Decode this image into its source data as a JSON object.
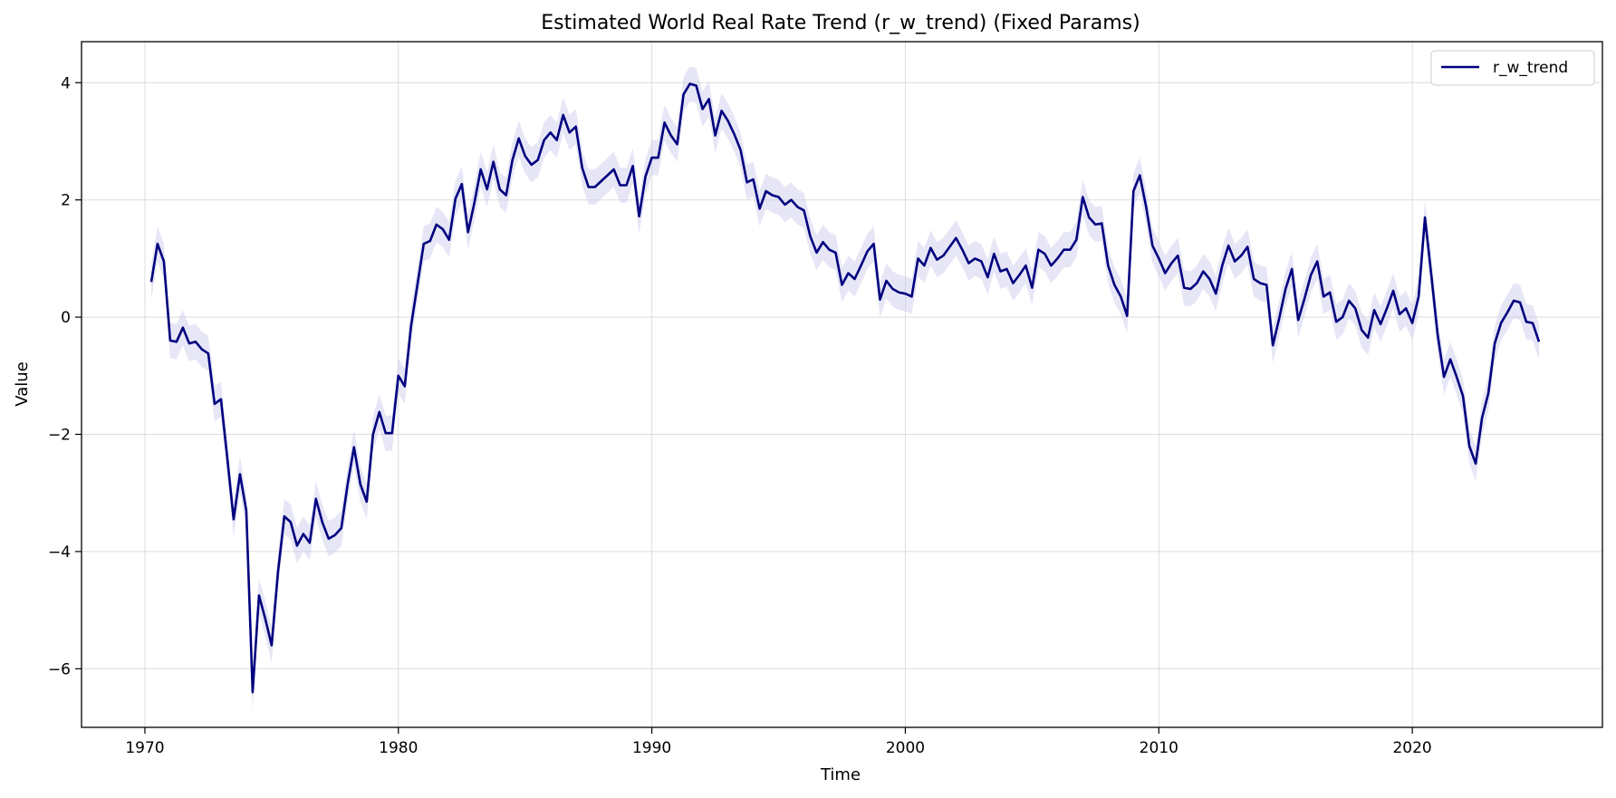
{
  "chart_data": {
    "type": "line",
    "title": "Estimated World Real Rate Trend (r_w_trend) (Fixed Params)",
    "xlabel": "Time",
    "ylabel": "Value",
    "xlim": [
      1967.5,
      2027.5
    ],
    "ylim": [
      -7.0,
      4.7
    ],
    "x_ticks": [
      1970,
      1980,
      1990,
      2000,
      2010,
      2020
    ],
    "x_tick_labels": [
      "1970",
      "1980",
      "1990",
      "2000",
      "2010",
      "2020"
    ],
    "y_ticks": [
      -6,
      -4,
      -2,
      0,
      2,
      4
    ],
    "y_tick_labels": [
      "−6",
      "−4",
      "−2",
      "0",
      "2",
      "4"
    ],
    "grid": true,
    "legend_position": "top-right",
    "colors": {
      "line": "#00007f",
      "band": "#c8c8ea"
    },
    "band_halfwidth": 0.3,
    "series": [
      {
        "name": "r_w_trend",
        "x": [
          1970.25,
          1970.5,
          1970.75,
          1971.0,
          1971.25,
          1971.5,
          1971.75,
          1972.0,
          1972.25,
          1972.5,
          1972.75,
          1973.0,
          1973.25,
          1973.5,
          1973.75,
          1974.0,
          1974.25,
          1974.5,
          1974.75,
          1975.0,
          1975.25,
          1975.5,
          1975.75,
          1976.0,
          1976.25,
          1976.5,
          1976.75,
          1977.0,
          1977.25,
          1977.5,
          1977.75,
          1978.0,
          1978.25,
          1978.5,
          1978.75,
          1979.0,
          1979.25,
          1979.5,
          1979.75,
          1980.0,
          1980.25,
          1980.5,
          1980.75,
          1981.0,
          1981.25,
          1981.5,
          1981.75,
          1982.0,
          1982.25,
          1982.5,
          1982.75,
          1983.0,
          1983.25,
          1983.5,
          1983.75,
          1984.0,
          1984.25,
          1984.5,
          1984.75,
          1985.0,
          1985.25,
          1985.5,
          1985.75,
          1986.0,
          1986.25,
          1986.5,
          1986.75,
          1987.0,
          1987.25,
          1987.5,
          1987.75,
          1988.0,
          1988.25,
          1988.5,
          1988.75,
          1989.0,
          1989.25,
          1989.5,
          1989.75,
          1990.0,
          1990.25,
          1990.5,
          1990.75,
          1991.0,
          1991.25,
          1991.5,
          1991.75,
          1992.0,
          1992.25,
          1992.5,
          1992.75,
          1993.0,
          1993.25,
          1993.5,
          1993.75,
          1994.0,
          1994.25,
          1994.5,
          1994.75,
          1995.0,
          1995.25,
          1995.5,
          1995.75,
          1996.0,
          1996.25,
          1996.5,
          1996.75,
          1997.0,
          1997.25,
          1997.5,
          1997.75,
          1998.0,
          1998.25,
          1998.5,
          1998.75,
          1999.0,
          1999.25,
          1999.5,
          1999.75,
          2000.0,
          2000.25,
          2000.5,
          2000.75,
          2001.0,
          2001.25,
          2001.5,
          2001.75,
          2002.0,
          2002.25,
          2002.5,
          2002.75,
          2003.0,
          2003.25,
          2003.5,
          2003.75,
          2004.0,
          2004.25,
          2004.5,
          2004.75,
          2005.0,
          2005.25,
          2005.5,
          2005.75,
          2006.0,
          2006.25,
          2006.5,
          2006.75,
          2007.0,
          2007.25,
          2007.5,
          2007.75,
          2008.0,
          2008.25,
          2008.5,
          2008.75,
          2009.0,
          2009.25,
          2009.5,
          2009.75,
          2010.0,
          2010.25,
          2010.5,
          2010.75,
          2011.0,
          2011.25,
          2011.5,
          2011.75,
          2012.0,
          2012.25,
          2012.5,
          2012.75,
          2013.0,
          2013.25,
          2013.5,
          2013.75,
          2014.0,
          2014.25,
          2014.5,
          2014.75,
          2015.0,
          2015.25,
          2015.5,
          2015.75,
          2016.0,
          2016.25,
          2016.5,
          2016.75,
          2017.0,
          2017.25,
          2017.5,
          2017.75,
          2018.0,
          2018.25,
          2018.5,
          2018.75,
          2019.0,
          2019.25,
          2019.5,
          2019.75,
          2020.0,
          2020.25,
          2020.5,
          2020.75,
          2021.0,
          2021.25,
          2021.5,
          2021.75,
          2022.0,
          2022.25,
          2022.5,
          2022.75,
          2023.0,
          2023.25,
          2023.5,
          2023.75,
          2024.0,
          2024.25,
          2024.5,
          2024.75,
          2025.0
        ],
        "y": [
          0.6,
          1.25,
          0.95,
          -0.4,
          -0.42,
          -0.18,
          -0.45,
          -0.42,
          -0.55,
          -0.62,
          -1.48,
          -1.4,
          -2.4,
          -3.45,
          -2.68,
          -3.3,
          -6.4,
          -4.75,
          -5.15,
          -5.6,
          -4.35,
          -3.4,
          -3.5,
          -3.9,
          -3.7,
          -3.85,
          -3.1,
          -3.5,
          -3.78,
          -3.72,
          -3.6,
          -2.85,
          -2.22,
          -2.85,
          -3.15,
          -2.0,
          -1.62,
          -1.98,
          -1.98,
          -1.0,
          -1.18,
          -0.15,
          0.55,
          1.25,
          1.3,
          1.58,
          1.5,
          1.32,
          2.02,
          2.27,
          1.45,
          1.95,
          2.52,
          2.18,
          2.65,
          2.18,
          2.08,
          2.68,
          3.05,
          2.75,
          2.6,
          2.68,
          3.02,
          3.15,
          3.02,
          3.45,
          3.15,
          3.25,
          2.55,
          2.22,
          2.22,
          2.32,
          2.42,
          2.52,
          2.25,
          2.25,
          2.58,
          1.72,
          2.4,
          2.72,
          2.72,
          3.32,
          3.1,
          2.95,
          3.8,
          3.98,
          3.95,
          3.55,
          3.72,
          3.1,
          3.52,
          3.35,
          3.12,
          2.85,
          2.3,
          2.35,
          1.85,
          2.15,
          2.08,
          2.05,
          1.92,
          2.0,
          1.88,
          1.82,
          1.38,
          1.1,
          1.28,
          1.15,
          1.1,
          0.55,
          0.75,
          0.65,
          0.88,
          1.12,
          1.25,
          0.3,
          0.62,
          0.48,
          0.42,
          0.4,
          0.35,
          1.0,
          0.88,
          1.18,
          0.98,
          1.05,
          1.2,
          1.35,
          1.15,
          0.92,
          1.0,
          0.95,
          0.68,
          1.08,
          0.78,
          0.82,
          0.58,
          0.72,
          0.88,
          0.5,
          1.15,
          1.08,
          0.88,
          1.0,
          1.15,
          1.15,
          1.32,
          2.05,
          1.7,
          1.58,
          1.6,
          0.88,
          0.55,
          0.35,
          0.02,
          2.15,
          2.42,
          1.88,
          1.22,
          1.0,
          0.75,
          0.92,
          1.05,
          0.5,
          0.48,
          0.58,
          0.78,
          0.65,
          0.4,
          0.88,
          1.22,
          0.95,
          1.05,
          1.2,
          0.65,
          0.58,
          0.55,
          -0.48,
          -0.02,
          0.48,
          0.82,
          -0.05,
          0.32,
          0.72,
          0.95,
          0.35,
          0.42,
          -0.08,
          0.0,
          0.28,
          0.15,
          -0.22,
          -0.35,
          0.12,
          -0.12,
          0.15,
          0.45,
          0.05,
          0.15,
          -0.1,
          0.35,
          1.7,
          0.72,
          -0.3,
          -1.02,
          -0.72,
          -1.02,
          -1.35,
          -2.2,
          -2.5,
          -1.72,
          -1.3,
          -0.45,
          -0.1,
          0.08,
          0.28,
          0.25,
          -0.08,
          -0.1,
          -0.42
        ]
      }
    ]
  }
}
